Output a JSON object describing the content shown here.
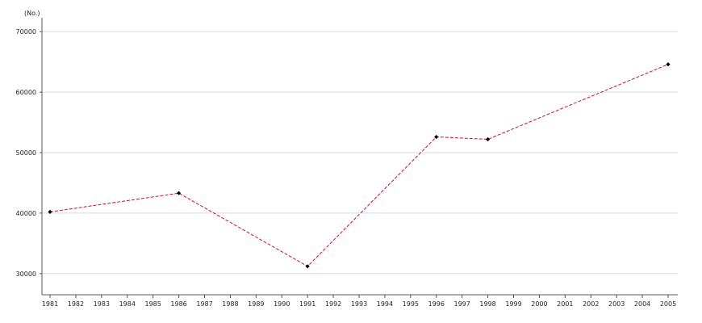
{
  "chart_data": {
    "type": "line",
    "ylabel": "(No.)",
    "xlabel": "",
    "title": "",
    "x_ticks": [
      "1981",
      "1982",
      "1983",
      "1984",
      "1985",
      "1986",
      "1987",
      "1988",
      "1989",
      "1990",
      "1991",
      "1992",
      "1993",
      "1994",
      "1995",
      "1996",
      "1997",
      "1998",
      "1999",
      "2000",
      "2001",
      "2002",
      "2003",
      "2004",
      "2005"
    ],
    "y_ticks": [
      30000,
      40000,
      50000,
      60000,
      70000
    ],
    "ylim": [
      26500,
      71500
    ],
    "xlim": [
      1981,
      2005
    ],
    "grid": true,
    "legend": "none",
    "series": [
      {
        "x": [
          1981,
          1986,
          1991,
          1996,
          1998,
          2005
        ],
        "values": [
          40200,
          43300,
          31200,
          52600,
          52200,
          64600
        ],
        "line_color": "#c8102e",
        "marker_color": "#000000"
      }
    ]
  }
}
